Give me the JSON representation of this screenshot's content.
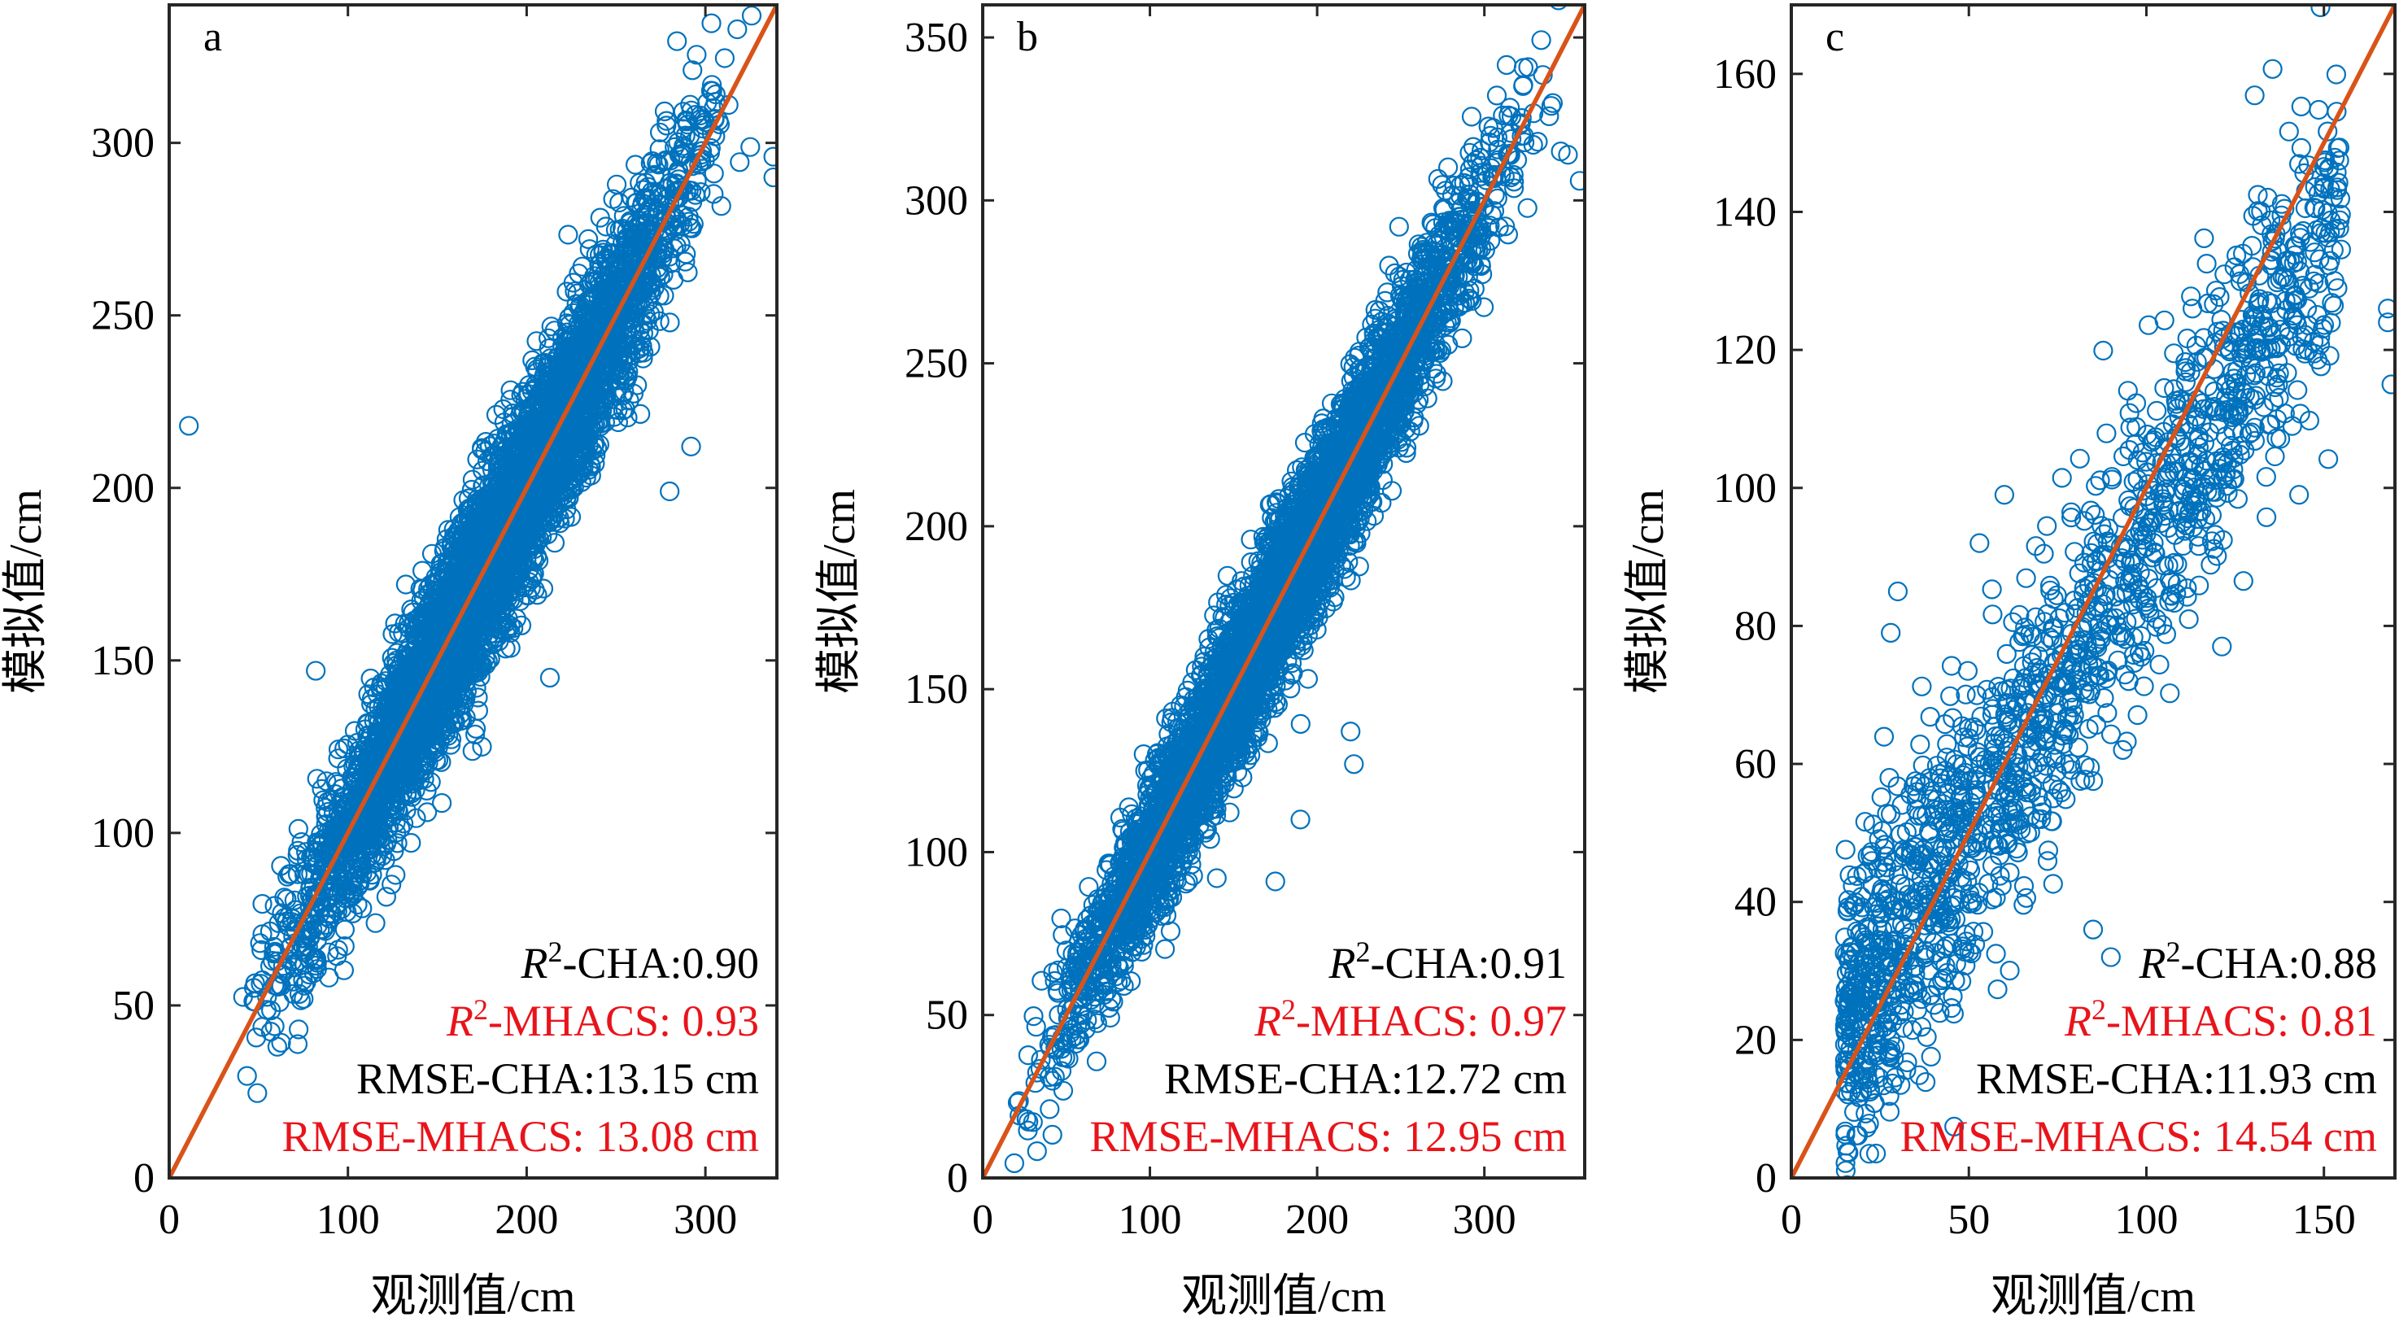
{
  "colors": {
    "points": "#0072BD",
    "fit_line": "#D95319",
    "stat_black": "#000000",
    "stat_red": "#E8141B",
    "axes": "#262626"
  },
  "chart_data": [
    {
      "type": "scatter",
      "panel": "a",
      "xlabel": "观测值/cm",
      "ylabel": "模拟值/cm",
      "xlim": [
        0,
        340
      ],
      "ylim": [
        0,
        340
      ],
      "xticks": [
        0,
        100,
        200,
        300
      ],
      "yticks": [
        0,
        50,
        100,
        150,
        200,
        250,
        300
      ],
      "reference_line": [
        [
          0,
          0
        ],
        [
          340,
          340
        ]
      ],
      "point_trend": {
        "x_range": [
          32,
          330
        ],
        "slope": 1.0,
        "intercept": 0,
        "spread": 13
      },
      "outliers": [
        [
          11,
          218
        ],
        [
          82,
          147
        ],
        [
          175,
          125
        ],
        [
          213,
          145
        ],
        [
          280,
          199
        ],
        [
          292,
          212
        ],
        [
          300,
          306
        ],
        [
          313,
          311
        ],
        [
          338,
          296
        ],
        [
          338,
          290
        ],
        [
          305,
          307
        ]
      ],
      "stats": [
        {
          "label": "R",
          "sup": "2",
          "rest": "-CHA:0.90",
          "color": "black"
        },
        {
          "label": "R",
          "sup": "2",
          "rest": "-MHACS: 0.93",
          "color": "red"
        },
        {
          "label": "",
          "sup": "",
          "rest": "RMSE-CHA:13.15 cm",
          "color": "black"
        },
        {
          "label": "",
          "sup": "",
          "rest": "RMSE-MHACS: 13.08 cm",
          "color": "red"
        }
      ]
    },
    {
      "type": "scatter",
      "panel": "b",
      "xlabel": "观测值/cm",
      "ylabel": "模拟值/cm",
      "xlim": [
        0,
        360
      ],
      "ylim": [
        0,
        360
      ],
      "xticks": [
        0,
        100,
        200,
        300
      ],
      "yticks": [
        0,
        50,
        100,
        150,
        200,
        250,
        300,
        350
      ],
      "reference_line": [
        [
          0,
          0
        ],
        [
          360,
          360
        ]
      ],
      "point_trend": {
        "x_range": [
          4,
          350
        ],
        "slope": 1.0,
        "intercept": 0,
        "spread": 12
      },
      "outliers": [
        [
          222,
          127
        ],
        [
          220,
          137
        ],
        [
          175,
          91
        ],
        [
          140,
          92
        ],
        [
          340,
          329
        ],
        [
          350,
          314
        ],
        [
          357,
          306
        ],
        [
          332,
          318
        ],
        [
          270,
          280
        ],
        [
          190,
          110
        ]
      ],
      "stats": [
        {
          "label": "R",
          "sup": "2",
          "rest": "-CHA:0.91",
          "color": "black"
        },
        {
          "label": "R",
          "sup": "2",
          "rest": "-MHACS: 0.97",
          "color": "red"
        },
        {
          "label": "",
          "sup": "",
          "rest": "RMSE-CHA:12.72 cm",
          "color": "black"
        },
        {
          "label": "",
          "sup": "",
          "rest": "RMSE-MHACS: 12.95 cm",
          "color": "red"
        }
      ]
    },
    {
      "type": "scatter",
      "panel": "c",
      "xlabel": "观测值/cm",
      "ylabel": "模拟值/cm",
      "xlim": [
        0,
        170
      ],
      "ylim": [
        0,
        170
      ],
      "xticks": [
        0,
        50,
        100,
        150
      ],
      "yticks": [
        0,
        20,
        40,
        60,
        80,
        100,
        120,
        140,
        160
      ],
      "reference_line": [
        [
          0,
          0
        ],
        [
          170,
          170
        ]
      ],
      "point_trend": {
        "x_range": [
          15,
          155
        ],
        "slope": 0.85,
        "intercept": 8,
        "spread": 11
      },
      "outliers": [
        [
          168,
          126
        ],
        [
          168,
          124
        ],
        [
          169,
          115
        ],
        [
          30,
          85
        ],
        [
          28,
          79
        ],
        [
          53,
          92
        ],
        [
          60,
          99
        ],
        [
          92,
          75
        ],
        [
          95,
          72
        ],
        [
          143,
          99
        ],
        [
          130,
          132
        ],
        [
          135,
          133
        ],
        [
          90,
          32
        ],
        [
          85,
          36
        ]
      ],
      "stats": [
        {
          "label": "R",
          "sup": "2",
          "rest": "-CHA:0.88",
          "color": "black"
        },
        {
          "label": "R",
          "sup": "2",
          "rest": "-MHACS: 0.81",
          "color": "red"
        },
        {
          "label": "",
          "sup": "",
          "rest": "RMSE-CHA:11.93 cm",
          "color": "black"
        },
        {
          "label": "",
          "sup": "",
          "rest": "RMSE-MHACS: 14.54 cm",
          "color": "red"
        }
      ]
    }
  ]
}
